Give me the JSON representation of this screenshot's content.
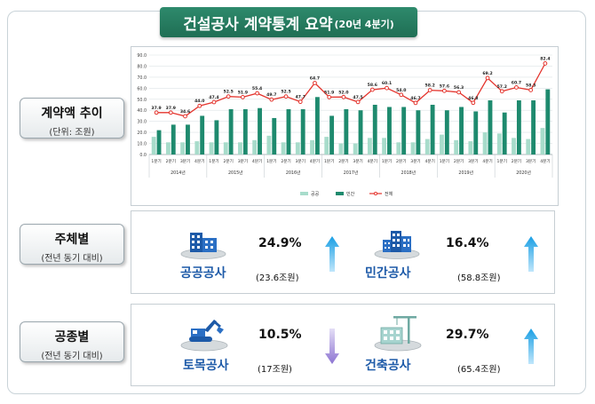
{
  "title": {
    "main": "건설공사 계약통계 요약",
    "sub": "(20년 4분기)"
  },
  "sections": {
    "trend": {
      "label": "계약액 추이",
      "sub": "(단위: 조원)"
    },
    "by_agent": {
      "label": "주체별",
      "sub": "(전년 동기 대비)"
    },
    "by_type": {
      "label": "공종별",
      "sub": "(전년 동기 대비)"
    }
  },
  "cards": {
    "public": {
      "name": "공공공사",
      "pct": "24.9%",
      "amount": "(23.6조원)",
      "direction": "up",
      "icon": "office-building-icon"
    },
    "private": {
      "name": "민간공사",
      "pct": "16.4%",
      "amount": "(58.8조원)",
      "direction": "up",
      "icon": "city-buildings-icon"
    },
    "civil": {
      "name": "토목공사",
      "pct": "10.5%",
      "amount": "(17조원)",
      "direction": "down",
      "icon": "excavator-icon"
    },
    "building": {
      "name": "건축공사",
      "pct": "29.7%",
      "amount": "(65.4조원)",
      "direction": "up",
      "icon": "building-crane-icon"
    }
  },
  "colors": {
    "public": "#a8dccb",
    "private": "#1e8a6e",
    "total": "#e4342d",
    "up_arrow": "#20a6e6",
    "down_arrow": "#9c86d8",
    "banner": "#26805f",
    "name_text": "#1d5aa8"
  },
  "chart_data": {
    "type": "bar",
    "ylim": [
      0,
      90
    ],
    "yticks": [
      "0.0",
      "10.0",
      "20.0",
      "30.0",
      "40.0",
      "50.0",
      "60.0",
      "70.0",
      "80.0",
      "90.0"
    ],
    "categories": [
      "1분기",
      "2분기",
      "3분기",
      "4분기",
      "1분기",
      "2분기",
      "3분기",
      "4분기",
      "1분기",
      "2분기",
      "3분기",
      "4분기",
      "1분기",
      "2분기",
      "3분기",
      "4분기",
      "1분기",
      "2분기",
      "3분기",
      "4분기",
      "1분기",
      "2분기",
      "3분기",
      "4분기",
      "1분기",
      "2분기",
      "3분기",
      "4분기"
    ],
    "years": [
      "2014년",
      "2015년",
      "2016년",
      "2017년",
      "2018년",
      "2019년",
      "2020년"
    ],
    "series": [
      {
        "name": "공공",
        "type": "bar",
        "values": [
          16,
          11,
          11,
          12,
          11,
          11,
          11,
          13,
          17,
          11,
          11,
          13,
          16,
          10,
          10,
          15,
          15,
          11,
          11,
          14,
          18,
          13,
          12,
          20,
          19,
          15,
          14,
          24
        ]
      },
      {
        "name": "민간",
        "type": "bar",
        "values": [
          22,
          27,
          27,
          35,
          31,
          41,
          41,
          42,
          33,
          41,
          41,
          52,
          35,
          41,
          40,
          45,
          43,
          43,
          40,
          45,
          40,
          43,
          39,
          49,
          38,
          49,
          49,
          59
        ]
      },
      {
        "name": "전체",
        "type": "line",
        "values": [
          37.9,
          37.9,
          34.6,
          44.0,
          47.4,
          52.5,
          51.9,
          55.4,
          49.7,
          52.5,
          47.7,
          64.7,
          51.9,
          52.0,
          47.5,
          58.6,
          60.1,
          54.0,
          46.7,
          58.2,
          57.6,
          56.3,
          46.8,
          69.2,
          57.2,
          60.7,
          58.3,
          82.4
        ]
      }
    ],
    "data_labels": [
      "37.9",
      "37.9",
      "34.6",
      "44.0",
      "47.4",
      "52.5",
      "51.9",
      "55.4",
      "49.7",
      "52.5",
      "47.7",
      "64.7",
      "51.9",
      "52.0",
      "47.5",
      "58.6",
      "60.1",
      "54.0",
      "46.7",
      "58.2",
      "57.6",
      "56.3",
      "46.8",
      "69.2",
      "57.2",
      "60.7",
      "58.3",
      "82.4"
    ],
    "legend": {
      "placement": "bottom",
      "entries": [
        "공공",
        "민간",
        "전체"
      ]
    },
    "grid": true
  }
}
